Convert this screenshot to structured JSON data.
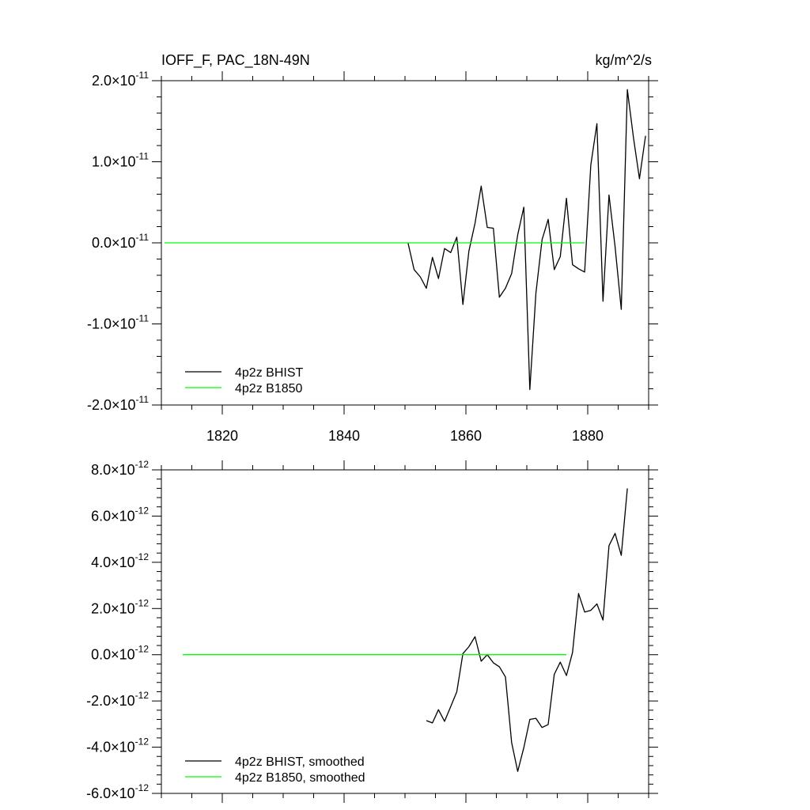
{
  "chart_data": [
    {
      "type": "line",
      "title": "IOFF_F, PAC_18N-49N",
      "units": "kg/m^2/s",
      "xlim": [
        1810,
        1890
      ],
      "ylim": [
        -2e-11,
        2e-11
      ],
      "x_ticks": [
        "1820",
        "1840",
        "1860",
        "1880"
      ],
      "x_tick_values": [
        1820,
        1840,
        1860,
        1880
      ],
      "y_ticks": [
        {
          "mant": "2.0",
          "exp": "-11",
          "value": 2e-11
        },
        {
          "mant": "1.0",
          "exp": "-11",
          "value": 1e-11
        },
        {
          "mant": "0.0",
          "exp": "-11",
          "value": 0
        },
        {
          "mant": "-1.0",
          "exp": "-11",
          "value": -1e-11
        },
        {
          "mant": "-2.0",
          "exp": "-11",
          "value": -2e-11
        }
      ],
      "legend_position": "bottom-left",
      "series": [
        {
          "name": "4p2z BHIST",
          "color": "#000000",
          "x": [
            1850.5,
            1851.5,
            1852.5,
            1853.5,
            1854.5,
            1855.5,
            1856.5,
            1857.5,
            1858.5,
            1859.5,
            1860.5,
            1861.5,
            1862.5,
            1863.5,
            1864.5,
            1865.5,
            1866.5,
            1867.5,
            1868.5,
            1869.5,
            1870.5,
            1871.5,
            1872.5,
            1873.5,
            1874.5,
            1875.5,
            1876.5,
            1877.5,
            1878.5,
            1879.5,
            1880.5,
            1881.5,
            1882.5,
            1883.5,
            1884.5,
            1885.5,
            1886.5,
            1887.5,
            1888.5,
            1889.5
          ],
          "y": [
            0.0,
            -3.3e-12,
            -4.2e-12,
            -5.6e-12,
            -1.8e-12,
            -4.4e-12,
            -7e-13,
            -1.2e-12,
            7e-13,
            -7.6e-12,
            -1e-12,
            2.4e-12,
            7e-12,
            1.9e-12,
            1.8e-12,
            -6.7e-12,
            -5.6e-12,
            -3.8e-12,
            1e-12,
            4.4e-12,
            -1.81e-11,
            -6.2e-12,
            4e-13,
            2.9e-12,
            -3.3e-12,
            -1.7e-12,
            5.5e-12,
            -2.7e-12,
            -3.2e-12,
            -3.6e-12,
            9.6e-12,
            1.47e-11,
            -7.2e-12,
            5.9e-12,
            -5e-13,
            -8.2e-12,
            1.89e-11,
            1.3e-11,
            7.9e-12,
            1.32e-11
          ]
        },
        {
          "name": "4p2z B1850",
          "color": "#00ff00",
          "x": [
            1810.5,
            1879.5
          ],
          "y": [
            0,
            0
          ]
        }
      ]
    },
    {
      "type": "line",
      "xlim": [
        1810,
        1890
      ],
      "ylim": [
        -6e-12,
        8e-12
      ],
      "y_ticks": [
        {
          "mant": "8.0",
          "exp": "-12",
          "value": 8e-12
        },
        {
          "mant": "6.0",
          "exp": "-12",
          "value": 6e-12
        },
        {
          "mant": "4.0",
          "exp": "-12",
          "value": 4e-12
        },
        {
          "mant": "2.0",
          "exp": "-12",
          "value": 2e-12
        },
        {
          "mant": "0.0",
          "exp": "-12",
          "value": 0
        },
        {
          "mant": "-2.0",
          "exp": "-12",
          "value": -2e-12
        },
        {
          "mant": "-4.0",
          "exp": "-12",
          "value": -4e-12
        },
        {
          "mant": "-6.0",
          "exp": "-12",
          "value": -6e-12
        }
      ],
      "legend_position": "bottom-left",
      "series": [
        {
          "name": "4p2z BHIST, smoothed",
          "color": "#000000",
          "x": [
            1853.5,
            1854.5,
            1855.5,
            1856.5,
            1857.5,
            1858.5,
            1859.5,
            1860.5,
            1861.5,
            1862.5,
            1863.5,
            1864.5,
            1865.5,
            1866.5,
            1867.5,
            1868.5,
            1869.5,
            1870.5,
            1871.5,
            1872.5,
            1873.5,
            1874.5,
            1875.5,
            1876.5,
            1877.5,
            1878.5,
            1879.5,
            1880.5,
            1881.5,
            1882.5,
            1883.5,
            1884.5,
            1885.5,
            1886.5
          ],
          "y": [
            -2.85e-12,
            -2.95e-12,
            -2.38e-12,
            -2.88e-12,
            -2.24e-12,
            -1.6e-12,
            5e-14,
            3.5e-13,
            7.8e-13,
            -2.8e-13,
            0.0,
            -3.5e-13,
            -5.2e-13,
            -9.6e-13,
            -3.8e-12,
            -5.05e-12,
            -4.02e-12,
            -2.8e-12,
            -2.75e-12,
            -3.15e-12,
            -3.02e-12,
            -8.5e-13,
            -3.2e-13,
            -9e-13,
            1e-13,
            2.65e-12,
            1.85e-12,
            1.92e-12,
            2.2e-12,
            1.5e-12,
            4.72e-12,
            5.25e-12,
            4.3e-12,
            7.2e-12
          ]
        },
        {
          "name": "4p2z B1850, smoothed",
          "color": "#00ff00",
          "x": [
            1813.5,
            1876.5
          ],
          "y": [
            0,
            0
          ]
        }
      ]
    }
  ]
}
